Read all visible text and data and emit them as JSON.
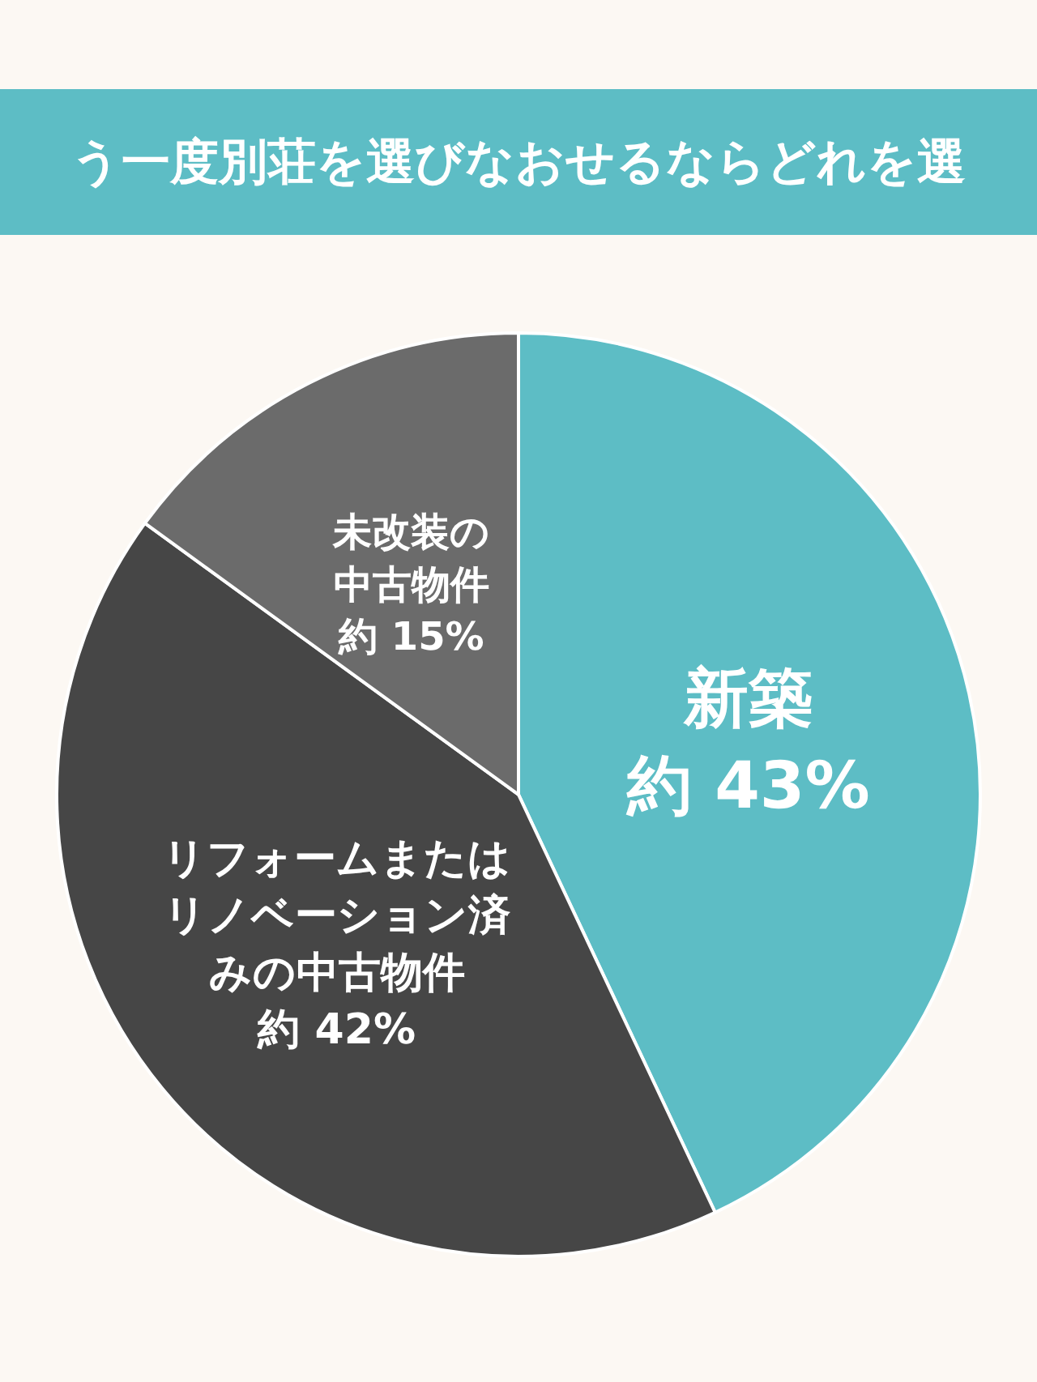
{
  "chart_data": {
    "type": "pie",
    "title": "う一度別荘を選びなおせるならどれを選",
    "categories": [
      "新築",
      "リフォームまたはリノベーション済みの中古物件",
      "未改装の中古物件"
    ],
    "values": [
      43,
      42,
      15
    ],
    "colors": [
      "#5dbdc5",
      "#464646",
      "#6b6b6b"
    ],
    "value_labels": [
      "約 43%",
      "約 42%",
      "約 15%"
    ]
  }
}
